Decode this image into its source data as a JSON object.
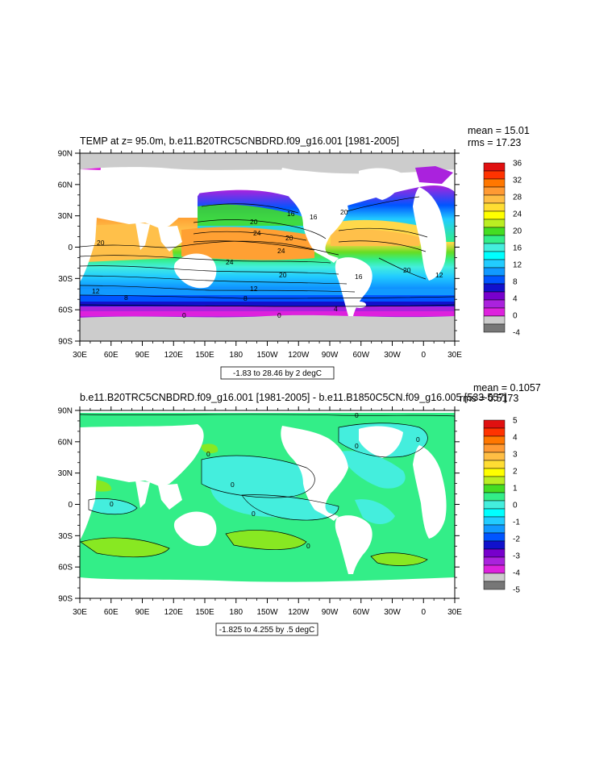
{
  "chart_data": [
    {
      "type": "heatmap",
      "title": "TEMP at z=  95.0m, b.e11.B20TRC5CNBDRD.f09_g16.001 [1981-2005]",
      "stats": [
        "mean = 15.01",
        "rms = 17.23"
      ],
      "x_ticks": [
        "30E",
        "60E",
        "90E",
        "120E",
        "150E",
        "180",
        "150W",
        "120W",
        "90W",
        "60W",
        "30W",
        "0",
        "30E"
      ],
      "y_ticks": [
        "90N",
        "60N",
        "30N",
        "0",
        "30S",
        "60S",
        "90S"
      ],
      "ylim": [
        -90,
        90
      ],
      "colorbar_levels": [
        "36",
        "32",
        "28",
        "24",
        "20",
        "16",
        "12",
        "8",
        "4",
        "0",
        "-4"
      ],
      "colorbar_range": [
        -4,
        36
      ],
      "colorbar_colors": [
        "#e01010",
        "#ff3300",
        "#ff7700",
        "#ff9a33",
        "#ffbe44",
        "#ffdd33",
        "#ffff00",
        "#bbee22",
        "#44dd22",
        "#33ee88",
        "#44eedd",
        "#00ffff",
        "#22ccff",
        "#1199ff",
        "#0055ff",
        "#1111cc",
        "#7700cc",
        "#aa22dd",
        "#dd22dd",
        "#cccccc",
        "#777777"
      ],
      "contour_labels": [
        "20",
        "24",
        "16",
        "20",
        "24",
        "20",
        "20",
        "12",
        "12",
        "20",
        "24",
        "16",
        "12",
        "8",
        "8",
        "20",
        "16",
        "4",
        "0",
        "0"
      ],
      "footer": "-1.83 to 28.46 by 2 degC",
      "grid": false
    },
    {
      "type": "heatmap",
      "title": "b.e11.B20TRC5CNBDRD.f09_g16.001 [1981-2005] - b.e11.B1850C5CN.f09_g16.005 [533-557]",
      "stats": [
        "mean = 0.1057",
        "rms = 0.5173"
      ],
      "x_ticks": [
        "30E",
        "60E",
        "90E",
        "120E",
        "150E",
        "180",
        "150W",
        "120W",
        "90W",
        "60W",
        "30W",
        "0",
        "30E"
      ],
      "y_ticks": [
        "90N",
        "60N",
        "30N",
        "0",
        "30S",
        "60S",
        "90S"
      ],
      "ylim": [
        -90,
        90
      ],
      "colorbar_levels": [
        "5",
        "4",
        "3",
        "2",
        "1",
        "0",
        "-1",
        "-2",
        "-3",
        "-4",
        "-5"
      ],
      "colorbar_range": [
        -5,
        5
      ],
      "colorbar_colors": [
        "#e01010",
        "#ff3300",
        "#ff7700",
        "#ff9a33",
        "#ffbe44",
        "#ffdd33",
        "#ffff00",
        "#bbee22",
        "#44dd22",
        "#33ee88",
        "#44eedd",
        "#00ffff",
        "#22ccff",
        "#1199ff",
        "#0055ff",
        "#1111cc",
        "#7700cc",
        "#aa22dd",
        "#dd22dd",
        "#cccccc",
        "#777777"
      ],
      "contour_labels": [
        "0",
        "0",
        "0",
        "0",
        "0",
        "0",
        "0",
        "0"
      ],
      "footer": "-1.825 to 4.255 by .5 degC",
      "grid": false
    }
  ]
}
